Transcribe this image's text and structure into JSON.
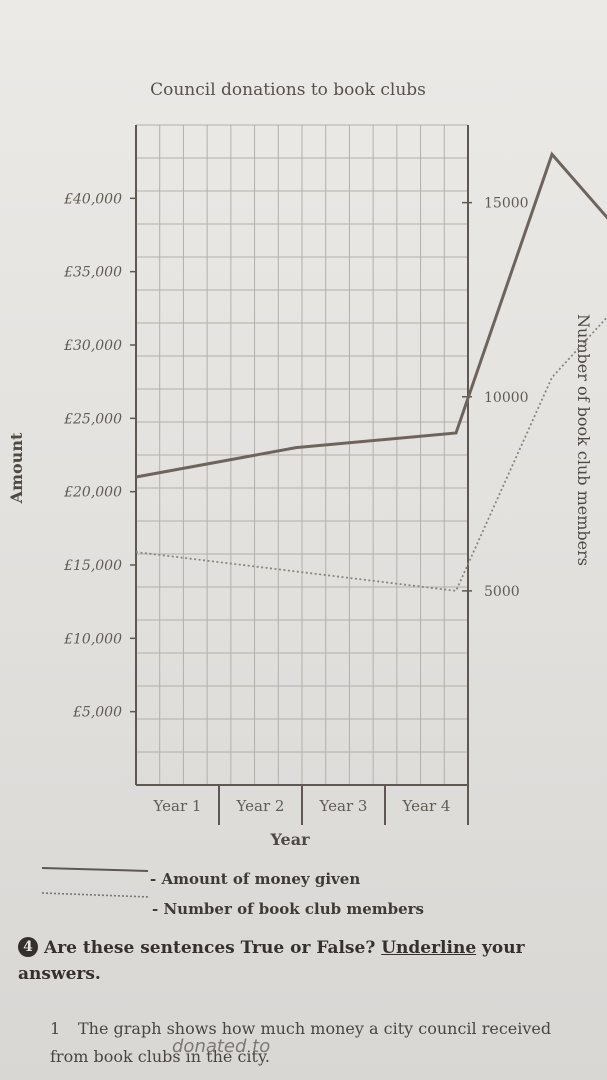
{
  "chart_data": {
    "type": "line",
    "title": "Council donations to book clubs",
    "xlabel": "Year",
    "ylabel_left": "Amount",
    "ylabel_right": "Number of book club members",
    "categories": [
      "Year 1",
      "Year 2",
      "Year 3",
      "Year 4"
    ],
    "left_axis": {
      "ylim": [
        0,
        45000
      ],
      "ticks": [
        5000,
        10000,
        15000,
        20000,
        25000,
        30000,
        35000,
        40000
      ],
      "tick_labels": [
        "£5,000",
        "£10,000",
        "£15,000",
        "£20,000",
        "£25,000",
        "£30,000",
        "£35,000",
        "£40,000"
      ]
    },
    "right_axis": {
      "ylim": [
        0,
        17000
      ],
      "ticks": [
        5000,
        10000,
        15000
      ],
      "tick_labels": [
        "5000",
        "10000",
        "15000"
      ]
    },
    "series": [
      {
        "name": "Amount of money given",
        "axis": "left",
        "style": "solid",
        "x": [
          0,
          1,
          2,
          2.6,
          3
        ],
        "values": [
          21000,
          23000,
          24000,
          43000,
          38000
        ]
      },
      {
        "name": "Number of book club members",
        "axis": "right",
        "style": "dotted",
        "x": [
          0,
          1,
          2,
          2.6,
          3
        ],
        "values": [
          6000,
          5500,
          5000,
          10500,
          12300
        ]
      }
    ],
    "grid": true,
    "legend": "bottom-left",
    "colors": {
      "money": "#6d655d",
      "members": "#8a8580",
      "grid": "#b3afab",
      "axis": "#5f5852"
    }
  },
  "question": {
    "number": "4",
    "text": "Are these sentences True or False? ",
    "emphasis": "Underline",
    "text_after": " your answers."
  },
  "item1": {
    "number": "1",
    "text": "The graph shows how much money a city council received from book clubs in the city."
  },
  "handwriting": {
    "text": "donated to"
  }
}
